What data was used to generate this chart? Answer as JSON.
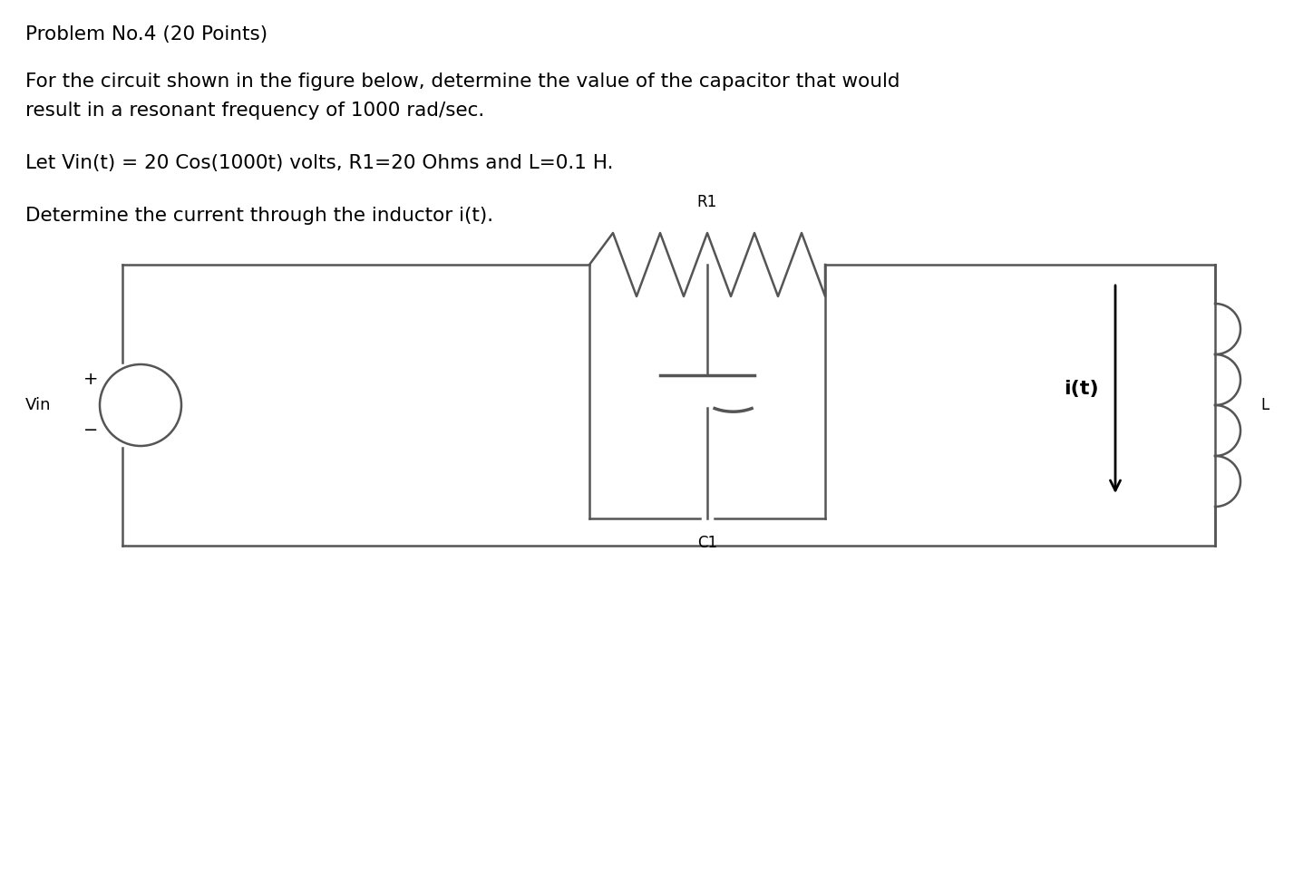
{
  "line1": "Problem No.4 (20 Points)",
  "line2": "For the circuit shown in the figure below, determine the value of the capacitor that would",
  "line3": "result in a resonant frequency of 1000 rad/sec.",
  "line4": "Let Vin(t) = 20 Cos(1000t) volts, R1=20 Ohms and L=0.1 H.",
  "line5": "Determine the current through the inductor i(t).",
  "background_color": "#ffffff",
  "text_color": "#000000",
  "line_color": "#555555",
  "body_fontsize": 15.5,
  "label_fontsize": 12
}
